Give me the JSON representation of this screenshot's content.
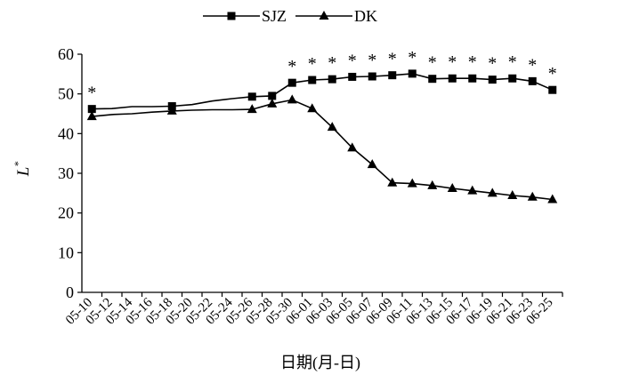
{
  "chart_data": {
    "type": "line",
    "ylabel": "L",
    "ylabel_sup": "*",
    "xlabel": "日期(月-日)",
    "ylim": [
      0,
      60
    ],
    "yticks": [
      0,
      10,
      20,
      30,
      40,
      50,
      60
    ],
    "legend": "top",
    "grid": false,
    "x_ticks": [
      "05-10",
      "05-12",
      "05-14",
      "05-16",
      "05-18",
      "05-20",
      "05-22",
      "05-24",
      "05-26",
      "05-28",
      "05-30",
      "06-01",
      "06-03",
      "06-05",
      "06-07",
      "06-09",
      "06-11",
      "06-13",
      "06-15",
      "06-17",
      "06-19",
      "06-21",
      "06-23",
      "06-25"
    ],
    "series": [
      {
        "name": "SJZ",
        "marker": "square",
        "points": [
          {
            "x": "05-10",
            "y": 46.2
          },
          {
            "x": "05-12",
            "y": 46.3
          },
          {
            "x": "05-14",
            "y": 46.8
          },
          {
            "x": "05-16",
            "y": 46.8
          },
          {
            "x": "05-18",
            "y": 46.9
          },
          {
            "x": "05-20",
            "y": 47.3
          },
          {
            "x": "05-22",
            "y": 48.2
          },
          {
            "x": "05-24",
            "y": 48.8
          },
          {
            "x": "05-26",
            "y": 49.3
          },
          {
            "x": "05-28",
            "y": 49.5
          },
          {
            "x": "05-30",
            "y": 52.8
          },
          {
            "x": "06-01",
            "y": 53.5
          },
          {
            "x": "06-03",
            "y": 53.7
          },
          {
            "x": "06-05",
            "y": 54.3
          },
          {
            "x": "06-07",
            "y": 54.4
          },
          {
            "x": "06-09",
            "y": 54.7
          },
          {
            "x": "06-11",
            "y": 55.1
          },
          {
            "x": "06-13",
            "y": 53.8
          },
          {
            "x": "06-15",
            "y": 53.9
          },
          {
            "x": "06-17",
            "y": 53.9
          },
          {
            "x": "06-19",
            "y": 53.6
          },
          {
            "x": "06-21",
            "y": 53.9
          },
          {
            "x": "06-23",
            "y": 53.2
          },
          {
            "x": "06-25",
            "y": 51.0
          }
        ],
        "marked_x": [
          "05-10",
          "05-18",
          "05-26",
          "05-28",
          "05-30",
          "06-01",
          "06-03",
          "06-05",
          "06-07",
          "06-09",
          "06-11",
          "06-13",
          "06-15",
          "06-17",
          "06-19",
          "06-21",
          "06-23",
          "06-25"
        ]
      },
      {
        "name": "DK",
        "marker": "triangle",
        "points": [
          {
            "x": "05-10",
            "y": 44.3
          },
          {
            "x": "05-12",
            "y": 44.8
          },
          {
            "x": "05-14",
            "y": 45.0
          },
          {
            "x": "05-16",
            "y": 45.4
          },
          {
            "x": "05-18",
            "y": 45.7
          },
          {
            "x": "05-20",
            "y": 45.9
          },
          {
            "x": "05-22",
            "y": 46.0
          },
          {
            "x": "05-24",
            "y": 46.0
          },
          {
            "x": "05-26",
            "y": 46.1
          },
          {
            "x": "05-28",
            "y": 47.5
          },
          {
            "x": "05-30",
            "y": 48.5
          },
          {
            "x": "06-01",
            "y": 46.3
          },
          {
            "x": "06-03",
            "y": 41.6
          },
          {
            "x": "06-05",
            "y": 36.4
          },
          {
            "x": "06-07",
            "y": 32.2
          },
          {
            "x": "06-09",
            "y": 27.6
          },
          {
            "x": "06-11",
            "y": 27.4
          },
          {
            "x": "06-13",
            "y": 26.9
          },
          {
            "x": "06-15",
            "y": 26.2
          },
          {
            "x": "06-17",
            "y": 25.6
          },
          {
            "x": "06-19",
            "y": 25.0
          },
          {
            "x": "06-21",
            "y": 24.4
          },
          {
            "x": "06-23",
            "y": 24.0
          },
          {
            "x": "06-25",
            "y": 23.4
          }
        ],
        "marked_x": [
          "05-10",
          "05-18",
          "05-26",
          "05-28",
          "05-30",
          "06-01",
          "06-03",
          "06-05",
          "06-07",
          "06-09",
          "06-11",
          "06-13",
          "06-15",
          "06-17",
          "06-19",
          "06-21",
          "06-23",
          "06-25"
        ]
      }
    ],
    "significance": {
      "symbol": "*",
      "at_x": [
        "05-10",
        "05-30",
        "06-01",
        "06-03",
        "06-05",
        "06-07",
        "06-09",
        "06-11",
        "06-13",
        "06-15",
        "06-17",
        "06-19",
        "06-21",
        "06-23",
        "06-25"
      ]
    }
  }
}
